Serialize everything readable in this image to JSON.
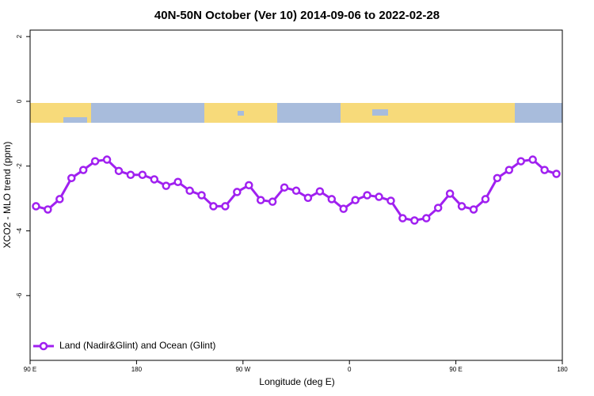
{
  "chart_data": {
    "type": "line",
    "title": "40N-50N October (Ver 10)   2014-09-06 to 2022-02-28",
    "x_label": "Longitude (deg E)",
    "y_label": "XCO2 - MLO trend (ppm)",
    "x": [
      95,
      105,
      115,
      125,
      135,
      145,
      155,
      165,
      175,
      185,
      195,
      205,
      215,
      225,
      235,
      245,
      255,
      265,
      275,
      285,
      295,
      305,
      315,
      325,
      335,
      345,
      355,
      365,
      375,
      385,
      395,
      405,
      415,
      425,
      435,
      445,
      455,
      465,
      475,
      485,
      495,
      505,
      515,
      525,
      535
    ],
    "series": [
      {
        "name": "Land (Nadir&Glint) and Ocean (Glint)",
        "color": "#a020f0",
        "values": [
          -3.24,
          -3.34,
          -3.02,
          -2.37,
          -2.12,
          -1.85,
          -1.8,
          -2.15,
          -2.27,
          -2.27,
          -2.41,
          -2.61,
          -2.49,
          -2.76,
          -2.9,
          -3.24,
          -3.24,
          -2.8,
          -2.59,
          -3.05,
          -3.1,
          -2.66,
          -2.76,
          -2.98,
          -2.78,
          -3.02,
          -3.32,
          -3.05,
          -2.9,
          -2.95,
          -3.07,
          -3.61,
          -3.68,
          -3.61,
          -3.29,
          -2.85,
          -3.24,
          -3.34,
          -3.02,
          -2.37,
          -2.12,
          -1.85,
          -1.8,
          -2.12,
          -2.24
        ]
      }
    ],
    "xlim": [
      90,
      540
    ],
    "xticks": [
      {
        "value": 90,
        "label": "90 E"
      },
      {
        "value": 180,
        "label": "180"
      },
      {
        "value": 270,
        "label": "90 W"
      },
      {
        "value": 360,
        "label": "0"
      },
      {
        "value": 450,
        "label": "90 E"
      },
      {
        "value": 540,
        "label": "180"
      }
    ],
    "ylim": [
      -8,
      2.2
    ],
    "yticks": [
      2,
      0,
      -2,
      -4,
      -6
    ],
    "legend": "bottom-left"
  }
}
